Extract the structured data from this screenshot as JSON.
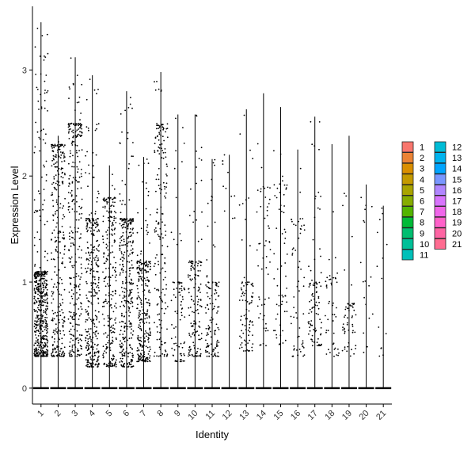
{
  "chart_data": {
    "type": "violin-jitter",
    "xlabel": "Identity",
    "ylabel": "Expression Level",
    "ylim": [
      -0.15,
      3.6
    ],
    "yticks": [
      0,
      1,
      2,
      3
    ],
    "categories": [
      "1",
      "2",
      "3",
      "4",
      "5",
      "6",
      "7",
      "8",
      "9",
      "10",
      "11",
      "12",
      "13",
      "14",
      "15",
      "16",
      "17",
      "18",
      "19",
      "20",
      "21"
    ],
    "colors": [
      "#F8766D",
      "#EB8335",
      "#DA8F00",
      "#C49A00",
      "#A9A400",
      "#86AC00",
      "#53B400",
      "#00BA38",
      "#00BE70",
      "#00C098",
      "#00C0B9",
      "#00BCD6",
      "#00B4EF",
      "#00A5FF",
      "#7997FF",
      "#B186FF",
      "#D874FD",
      "#F066EA",
      "#FF61C9",
      "#FF64A3",
      "#FF6C91"
    ],
    "max_values": [
      3.45,
      2.38,
      3.12,
      2.95,
      2.1,
      2.8,
      2.18,
      2.98,
      2.58,
      2.58,
      2.16,
      2.2,
      2.63,
      2.78,
      2.65,
      2.25,
      2.56,
      2.3,
      2.38,
      1.92,
      1.72
    ],
    "cluster_bulk_range": [
      [
        0.3,
        1.1
      ],
      [
        0.3,
        2.3
      ],
      [
        0.3,
        2.5
      ],
      [
        0.2,
        1.6
      ],
      [
        0.2,
        1.8
      ],
      [
        0.2,
        1.6
      ],
      [
        0.25,
        1.2
      ],
      [
        0.3,
        2.5
      ],
      [
        0.25,
        1.0
      ],
      [
        0.3,
        1.2
      ],
      [
        0.3,
        1.0
      ],
      [
        1.6,
        2.2
      ],
      [
        0.35,
        1.0
      ],
      [
        0.4,
        1.9
      ],
      [
        0.4,
        2.0
      ],
      [
        0.3,
        1.6
      ],
      [
        0.4,
        1.0
      ],
      [
        0.3,
        1.1
      ],
      [
        0.3,
        0.8
      ],
      [
        0.3,
        1.8
      ],
      [
        0.3,
        1.7
      ]
    ],
    "cells_per_cluster": [
      520,
      300,
      300,
      330,
      250,
      330,
      270,
      180,
      80,
      150,
      120,
      12,
      90,
      55,
      60,
      60,
      95,
      45,
      55,
      18,
      14
    ],
    "legend": {
      "position": "right",
      "columns": [
        [
          "1",
          "2",
          "3",
          "4",
          "5",
          "6",
          "7",
          "8",
          "9",
          "10",
          "11"
        ],
        [
          "12",
          "13",
          "14",
          "15",
          "16",
          "17",
          "18",
          "19",
          "20",
          "21"
        ]
      ]
    },
    "grid": false
  }
}
